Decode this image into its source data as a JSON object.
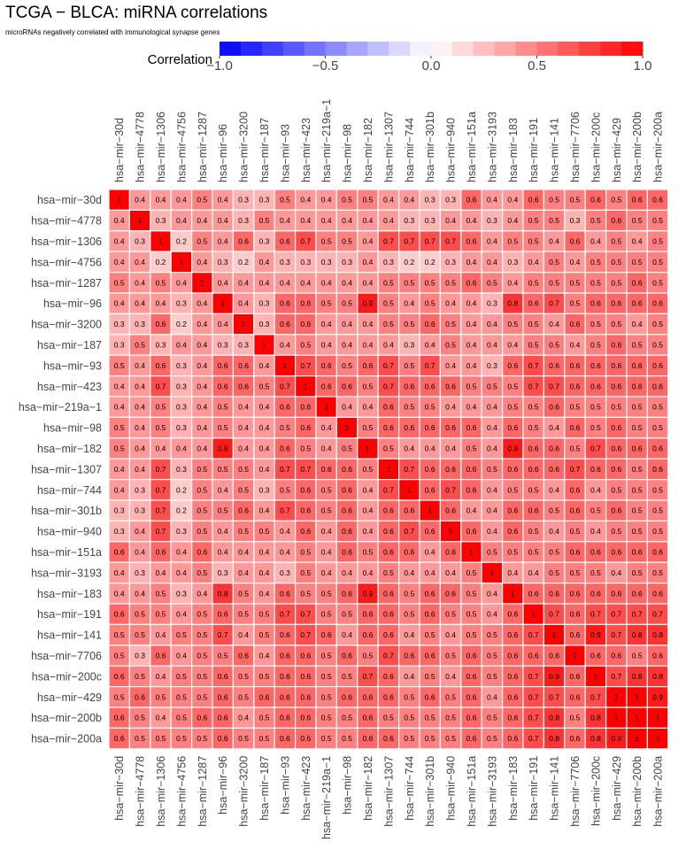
{
  "chart_data": {
    "type": "heatmap",
    "title": "TCGA − BLCA: miRNA correlations",
    "subtitle": "microRNAs negatively correlated with immunological synapse genes",
    "legend": {
      "title": "Correlation",
      "placement": "top",
      "ticks": [
        -1.0,
        -0.5,
        0.0,
        0.5,
        1.0
      ],
      "tick_labels": [
        "−1.0",
        "−0.5",
        "0.0",
        "0.5",
        "1.0"
      ],
      "range": [
        -1,
        1
      ],
      "steps": 20
    },
    "colors": {
      "negative": "#0000ff",
      "zero": "#ffffff",
      "positive": "#ff0000",
      "grid": "#ffffff"
    },
    "labels": [
      "hsa−mir−30d",
      "hsa−mir−4778",
      "hsa−mir−1306",
      "hsa−mir−4756",
      "hsa−mir−1287",
      "hsa−mir−96",
      "hsa−mir−3200",
      "hsa−mir−187",
      "hsa−mir−93",
      "hsa−mir−423",
      "hsa−mir−219a−1",
      "hsa−mir−98",
      "hsa−mir−182",
      "hsa−mir−1307",
      "hsa−mir−744",
      "hsa−mir−301b",
      "hsa−mir−940",
      "hsa−mir−151a",
      "hsa−mir−3193",
      "hsa−mir−183",
      "hsa−mir−191",
      "hsa−mir−141",
      "hsa−mir−7706",
      "hsa−mir−200c",
      "hsa−mir−429",
      "hsa−mir−200b",
      "hsa−mir−200a"
    ],
    "matrix": [
      [
        1,
        0.4,
        0.4,
        0.4,
        0.5,
        0.4,
        0.3,
        0.3,
        0.5,
        0.4,
        0.4,
        0.5,
        0.5,
        0.4,
        0.4,
        0.3,
        0.3,
        0.6,
        0.4,
        0.4,
        0.6,
        0.5,
        0.5,
        0.6,
        0.5,
        0.6,
        0.6
      ],
      [
        0.4,
        1,
        0.3,
        0.4,
        0.4,
        0.4,
        0.3,
        0.5,
        0.4,
        0.4,
        0.4,
        0.4,
        0.4,
        0.4,
        0.3,
        0.3,
        0.4,
        0.4,
        0.3,
        0.4,
        0.5,
        0.5,
        0.3,
        0.5,
        0.6,
        0.5,
        0.5
      ],
      [
        0.4,
        0.3,
        1,
        0.2,
        0.5,
        0.4,
        0.6,
        0.3,
        0.6,
        0.7,
        0.5,
        0.5,
        0.4,
        0.7,
        0.7,
        0.7,
        0.7,
        0.6,
        0.4,
        0.5,
        0.5,
        0.4,
        0.6,
        0.4,
        0.5,
        0.4,
        0.5
      ],
      [
        0.4,
        0.4,
        0.2,
        1,
        0.4,
        0.3,
        0.2,
        0.4,
        0.3,
        0.3,
        0.3,
        0.3,
        0.4,
        0.3,
        0.2,
        0.2,
        0.3,
        0.4,
        0.4,
        0.3,
        0.4,
        0.5,
        0.4,
        0.5,
        0.5,
        0.5,
        0.5
      ],
      [
        0.5,
        0.4,
        0.5,
        0.4,
        1,
        0.4,
        0.4,
        0.4,
        0.4,
        0.4,
        0.4,
        0.4,
        0.4,
        0.5,
        0.5,
        0.5,
        0.5,
        0.6,
        0.5,
        0.4,
        0.5,
        0.5,
        0.5,
        0.5,
        0.5,
        0.6,
        0.5
      ],
      [
        0.4,
        0.4,
        0.4,
        0.3,
        0.4,
        1,
        0.4,
        0.3,
        0.6,
        0.6,
        0.5,
        0.5,
        0.9,
        0.5,
        0.4,
        0.5,
        0.4,
        0.4,
        0.3,
        0.8,
        0.6,
        0.7,
        0.5,
        0.6,
        0.6,
        0.6,
        0.6
      ],
      [
        0.3,
        0.3,
        0.6,
        0.2,
        0.4,
        0.4,
        1,
        0.3,
        0.6,
        0.6,
        0.4,
        0.4,
        0.4,
        0.5,
        0.5,
        0.6,
        0.5,
        0.4,
        0.4,
        0.5,
        0.5,
        0.4,
        0.6,
        0.5,
        0.5,
        0.4,
        0.5
      ],
      [
        0.3,
        0.5,
        0.3,
        0.4,
        0.4,
        0.3,
        0.3,
        1,
        0.4,
        0.5,
        0.4,
        0.4,
        0.4,
        0.4,
        0.3,
        0.4,
        0.5,
        0.4,
        0.4,
        0.4,
        0.5,
        0.5,
        0.4,
        0.5,
        0.6,
        0.5,
        0.5
      ],
      [
        0.5,
        0.4,
        0.6,
        0.3,
        0.4,
        0.6,
        0.6,
        0.4,
        1,
        0.7,
        0.6,
        0.5,
        0.6,
        0.7,
        0.5,
        0.7,
        0.4,
        0.4,
        0.3,
        0.6,
        0.7,
        0.6,
        0.6,
        0.6,
        0.6,
        0.6,
        0.6
      ],
      [
        0.4,
        0.4,
        0.7,
        0.3,
        0.4,
        0.6,
        0.6,
        0.5,
        0.7,
        1,
        0.6,
        0.6,
        0.5,
        0.7,
        0.6,
        0.6,
        0.6,
        0.5,
        0.5,
        0.5,
        0.7,
        0.7,
        0.6,
        0.6,
        0.6,
        0.6,
        0.6
      ],
      [
        0.4,
        0.4,
        0.5,
        0.3,
        0.4,
        0.5,
        0.4,
        0.4,
        0.6,
        0.6,
        1,
        0.4,
        0.4,
        0.6,
        0.5,
        0.5,
        0.4,
        0.4,
        0.4,
        0.5,
        0.5,
        0.6,
        0.5,
        0.5,
        0.5,
        0.5,
        0.5
      ],
      [
        0.5,
        0.4,
        0.5,
        0.3,
        0.4,
        0.5,
        0.4,
        0.4,
        0.5,
        0.6,
        0.4,
        1,
        0.5,
        0.6,
        0.6,
        0.6,
        0.6,
        0.6,
        0.4,
        0.6,
        0.5,
        0.4,
        0.6,
        0.5,
        0.6,
        0.5,
        0.5
      ],
      [
        0.5,
        0.4,
        0.4,
        0.4,
        0.4,
        0.9,
        0.4,
        0.4,
        0.6,
        0.5,
        0.4,
        0.5,
        1,
        0.5,
        0.4,
        0.4,
        0.4,
        0.5,
        0.4,
        0.9,
        0.6,
        0.6,
        0.5,
        0.7,
        0.6,
        0.6,
        0.6
      ],
      [
        0.4,
        0.4,
        0.7,
        0.3,
        0.5,
        0.5,
        0.5,
        0.4,
        0.7,
        0.7,
        0.6,
        0.6,
        0.5,
        1,
        0.7,
        0.6,
        0.6,
        0.6,
        0.5,
        0.6,
        0.6,
        0.6,
        0.7,
        0.6,
        0.6,
        0.5,
        0.6
      ],
      [
        0.4,
        0.3,
        0.7,
        0.2,
        0.5,
        0.4,
        0.5,
        0.3,
        0.5,
        0.6,
        0.5,
        0.6,
        0.4,
        0.7,
        1,
        0.6,
        0.7,
        0.6,
        0.4,
        0.5,
        0.5,
        0.4,
        0.6,
        0.4,
        0.5,
        0.5,
        0.5
      ],
      [
        0.3,
        0.3,
        0.7,
        0.2,
        0.5,
        0.5,
        0.6,
        0.4,
        0.7,
        0.6,
        0.5,
        0.6,
        0.4,
        0.6,
        0.6,
        1,
        0.6,
        0.4,
        0.4,
        0.6,
        0.6,
        0.5,
        0.6,
        0.5,
        0.6,
        0.5,
        0.5
      ],
      [
        0.3,
        0.4,
        0.7,
        0.3,
        0.5,
        0.4,
        0.5,
        0.5,
        0.4,
        0.6,
        0.4,
        0.6,
        0.4,
        0.6,
        0.7,
        0.6,
        1,
        0.6,
        0.4,
        0.6,
        0.5,
        0.4,
        0.5,
        0.4,
        0.5,
        0.5,
        0.5
      ],
      [
        0.6,
        0.4,
        0.6,
        0.4,
        0.6,
        0.4,
        0.4,
        0.4,
        0.4,
        0.5,
        0.4,
        0.6,
        0.5,
        0.6,
        0.6,
        0.4,
        0.6,
        1,
        0.5,
        0.5,
        0.5,
        0.5,
        0.6,
        0.6,
        0.6,
        0.6,
        0.6
      ],
      [
        0.4,
        0.3,
        0.4,
        0.4,
        0.5,
        0.3,
        0.4,
        0.4,
        0.3,
        0.5,
        0.4,
        0.4,
        0.4,
        0.5,
        0.4,
        0.4,
        0.4,
        0.5,
        1,
        0.4,
        0.4,
        0.5,
        0.5,
        0.5,
        0.4,
        0.5,
        0.5
      ],
      [
        0.4,
        0.4,
        0.5,
        0.3,
        0.4,
        0.8,
        0.5,
        0.4,
        0.6,
        0.5,
        0.5,
        0.6,
        0.9,
        0.6,
        0.5,
        0.6,
        0.6,
        0.5,
        0.4,
        1,
        0.6,
        0.6,
        0.6,
        0.6,
        0.6,
        0.6,
        0.6
      ],
      [
        0.6,
        0.5,
        0.5,
        0.4,
        0.5,
        0.6,
        0.5,
        0.5,
        0.7,
        0.7,
        0.5,
        0.5,
        0.6,
        0.6,
        0.5,
        0.6,
        0.5,
        0.5,
        0.4,
        0.6,
        1,
        0.7,
        0.6,
        0.7,
        0.7,
        0.7,
        0.7
      ],
      [
        0.5,
        0.5,
        0.4,
        0.5,
        0.5,
        0.7,
        0.4,
        0.5,
        0.6,
        0.7,
        0.6,
        0.4,
        0.6,
        0.6,
        0.4,
        0.5,
        0.4,
        0.5,
        0.5,
        0.6,
        0.7,
        1,
        0.6,
        0.9,
        0.7,
        0.8,
        0.8
      ],
      [
        0.5,
        0.3,
        0.6,
        0.4,
        0.5,
        0.5,
        0.6,
        0.4,
        0.6,
        0.6,
        0.5,
        0.6,
        0.5,
        0.7,
        0.6,
        0.6,
        0.5,
        0.6,
        0.5,
        0.6,
        0.6,
        0.6,
        1,
        0.6,
        0.6,
        0.5,
        0.6
      ],
      [
        0.6,
        0.5,
        0.4,
        0.5,
        0.5,
        0.6,
        0.5,
        0.5,
        0.6,
        0.6,
        0.5,
        0.5,
        0.7,
        0.6,
        0.4,
        0.5,
        0.4,
        0.6,
        0.5,
        0.6,
        0.7,
        0.9,
        0.6,
        1,
        0.7,
        0.8,
        0.8
      ],
      [
        0.5,
        0.6,
        0.5,
        0.5,
        0.5,
        0.6,
        0.5,
        0.6,
        0.6,
        0.6,
        0.5,
        0.6,
        0.6,
        0.6,
        0.5,
        0.6,
        0.5,
        0.6,
        0.4,
        0.6,
        0.7,
        0.7,
        0.6,
        0.7,
        1,
        1,
        0.9
      ],
      [
        0.6,
        0.5,
        0.4,
        0.5,
        0.6,
        0.6,
        0.4,
        0.5,
        0.6,
        0.6,
        0.5,
        0.5,
        0.6,
        0.5,
        0.5,
        0.5,
        0.5,
        0.6,
        0.5,
        0.6,
        0.7,
        0.8,
        0.5,
        0.8,
        1,
        1,
        1
      ],
      [
        0.6,
        0.5,
        0.5,
        0.5,
        0.5,
        0.6,
        0.5,
        0.5,
        0.6,
        0.6,
        0.5,
        0.5,
        0.6,
        0.6,
        0.5,
        0.5,
        0.5,
        0.6,
        0.5,
        0.6,
        0.7,
        0.8,
        0.6,
        0.8,
        0.9,
        1,
        1
      ]
    ]
  }
}
